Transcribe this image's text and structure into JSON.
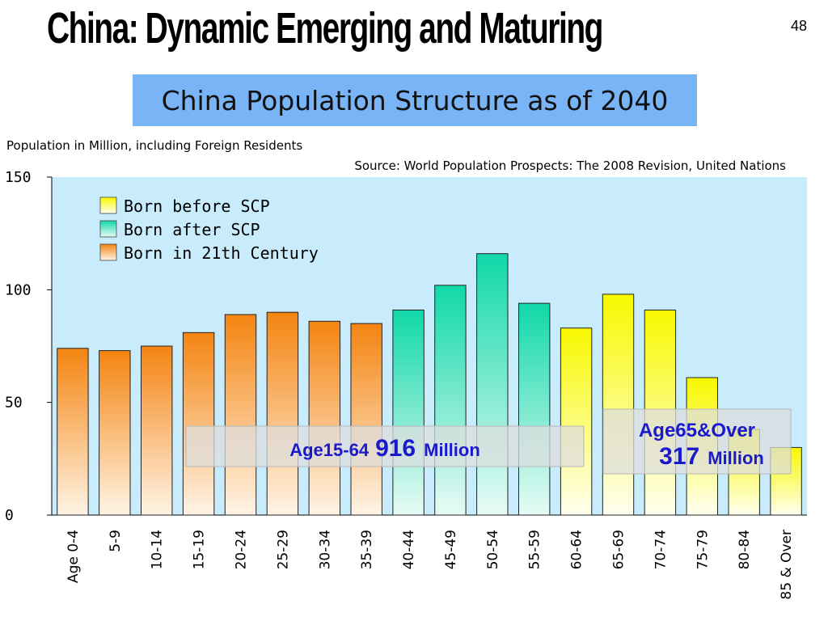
{
  "slide": {
    "title": "China: Dynamic Emerging and Maturing",
    "page_number": "48"
  },
  "colors": {
    "plot_background": "#c8ecfc",
    "title_box": "#79b5f6",
    "born_before_scp": "#f8f800",
    "born_after_scp": "#10d8a8",
    "born_21st_century": "#f48a10",
    "callout_text": "#1a1acc"
  },
  "callouts": {
    "working_age": {
      "label": "Age15-64",
      "value": "916",
      "unit": "Million"
    },
    "elderly": {
      "label": "Age65&Over",
      "value": "317",
      "unit": "Million"
    }
  },
  "chart_data": {
    "type": "bar",
    "title": "China Population Structure as of 2040",
    "subtitle": "Population in Million, including Foreign Residents",
    "source": "Source: World Population Prospects: The 2008 Revision, United Nations",
    "xlabel": "",
    "ylabel": "",
    "ylim": [
      0,
      150
    ],
    "yticks": [
      "0",
      "50",
      "100",
      "150"
    ],
    "grid": false,
    "legend_position": "top-left",
    "legend": [
      {
        "name": "Born before SCP",
        "group": "before"
      },
      {
        "name": "Born after SCP",
        "group": "after"
      },
      {
        "name": "Born in 21th Century",
        "group": "c21"
      }
    ],
    "categories": [
      "Age 0-4",
      "5-9",
      "10-14",
      "15-19",
      "20-24",
      "25-29",
      "30-34",
      "35-39",
      "40-44",
      "45-49",
      "50-54",
      "55-59",
      "60-64",
      "65-69",
      "70-74",
      "75-79",
      "80-84",
      "85 & Over"
    ],
    "values": [
      74,
      73,
      75,
      81,
      89,
      90,
      86,
      85,
      91,
      102,
      116,
      94,
      83,
      98,
      91,
      61,
      38,
      30
    ],
    "groups": [
      "c21",
      "c21",
      "c21",
      "c21",
      "c21",
      "c21",
      "c21",
      "c21",
      "after",
      "after",
      "after",
      "after",
      "before",
      "before",
      "before",
      "before",
      "before",
      "before"
    ]
  }
}
